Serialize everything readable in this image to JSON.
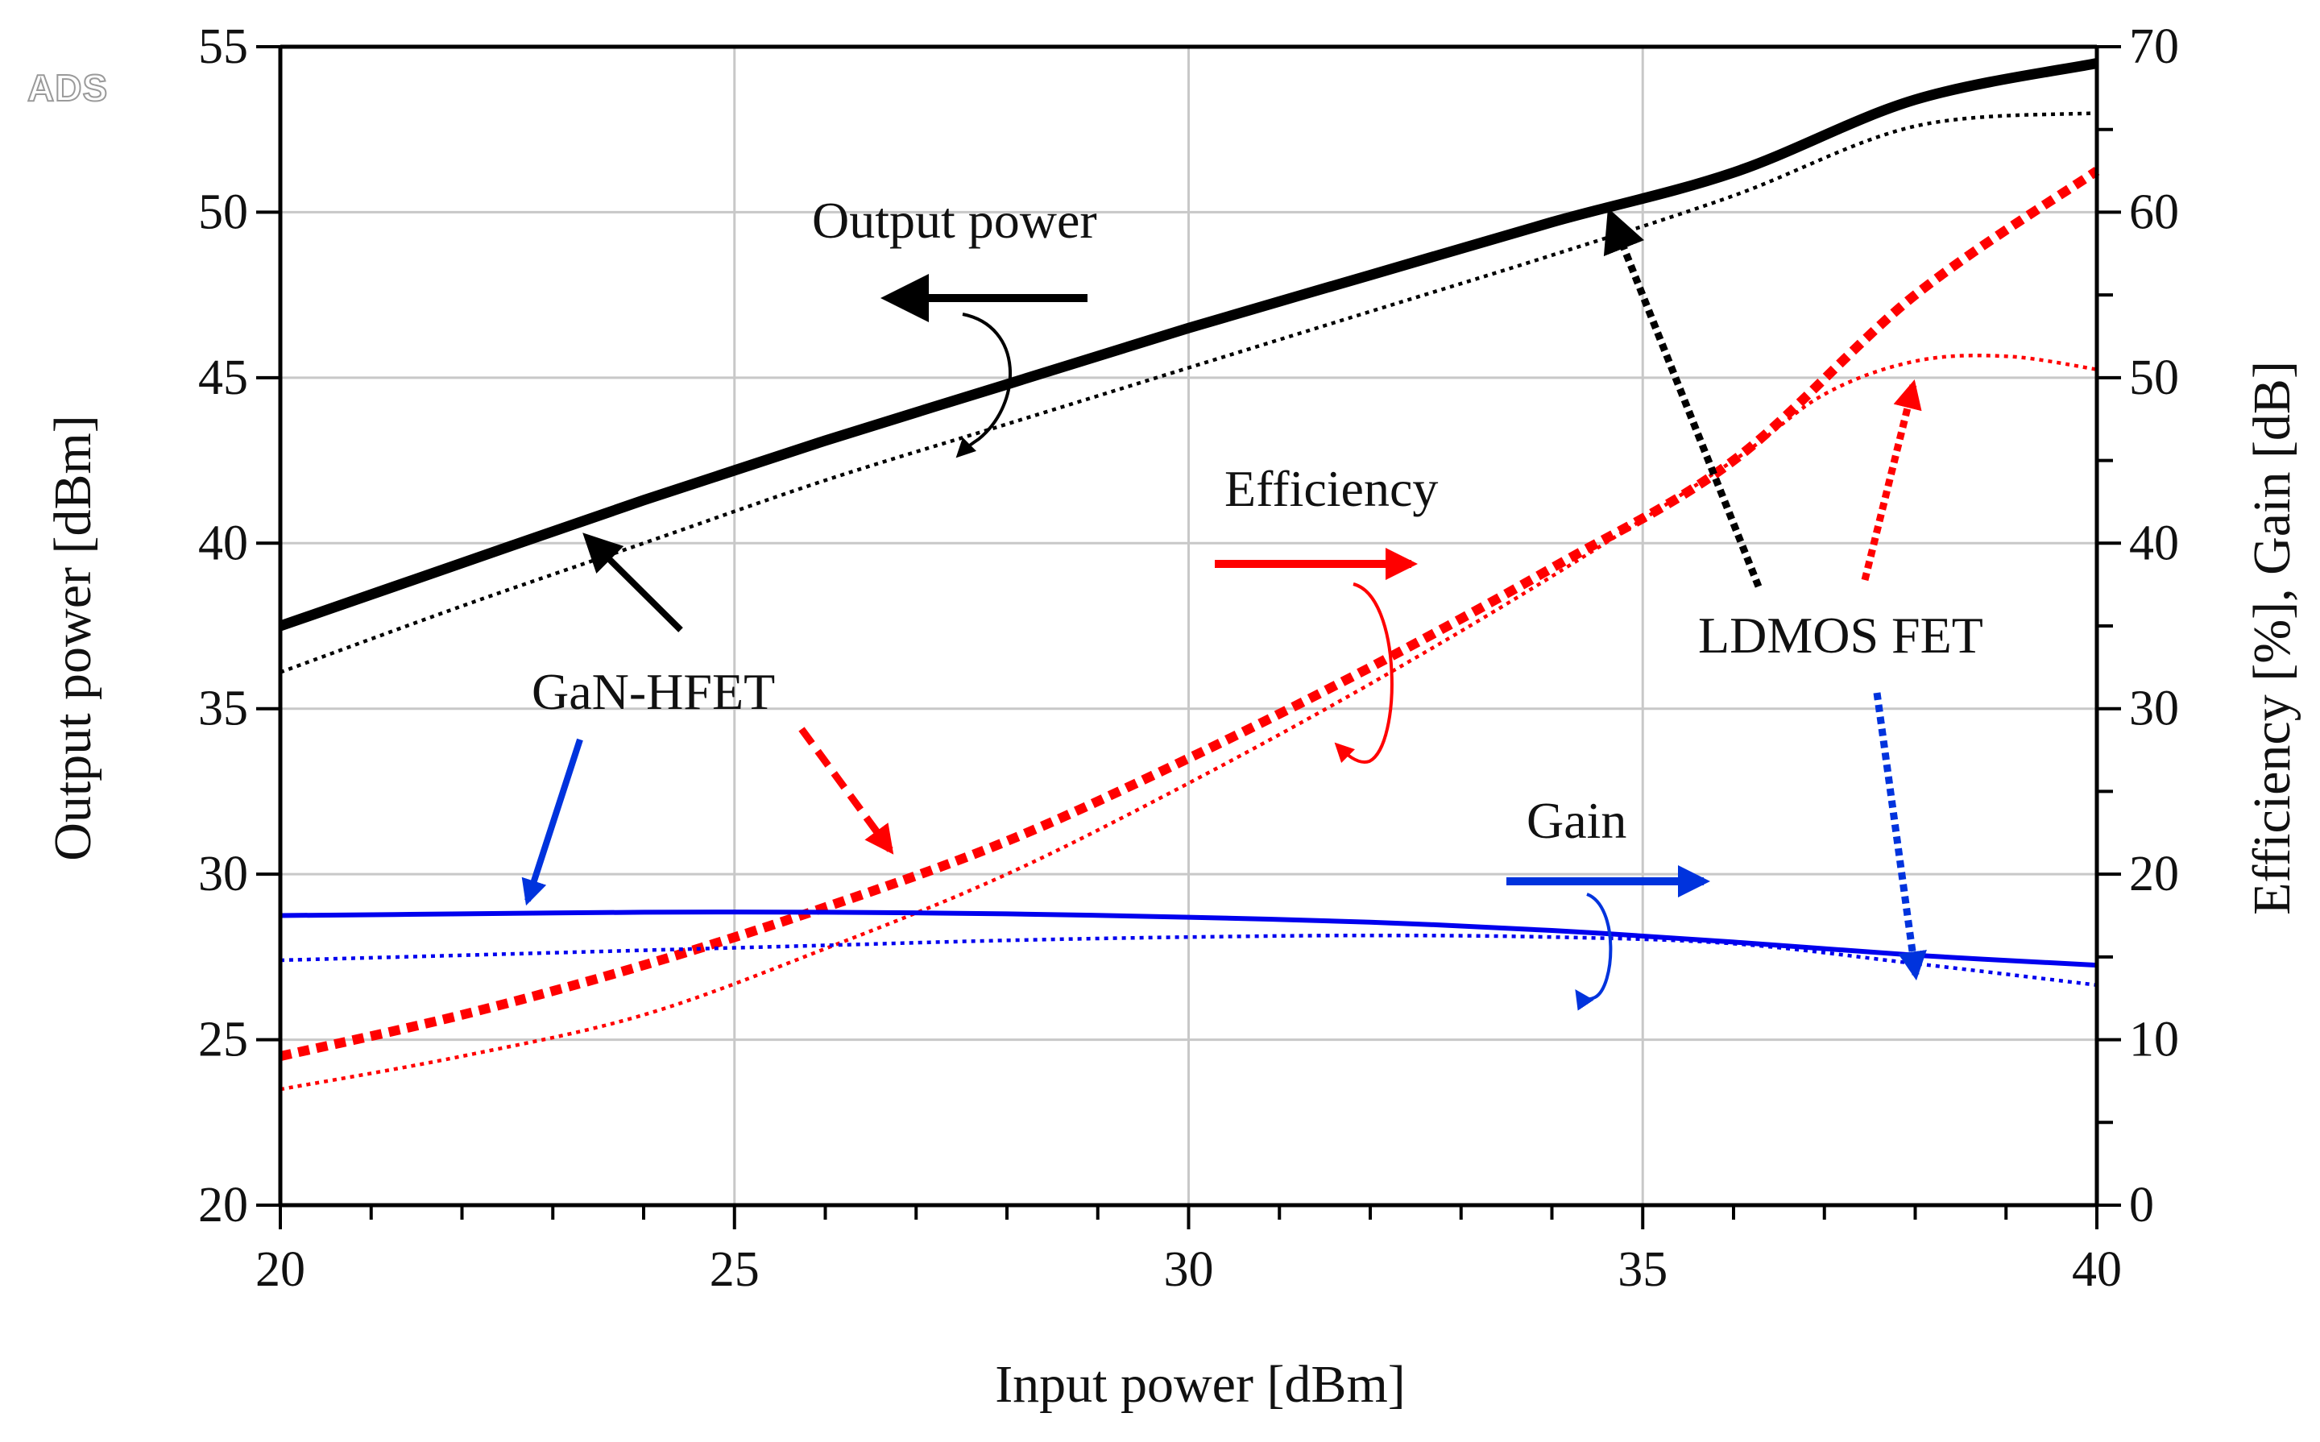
{
  "logo": "ADS",
  "chart_data": {
    "type": "line",
    "title": "",
    "xlabel": "Input power [dBm]",
    "ylabel_left": "Output power [dBm]",
    "ylabel_right": "Efficiency [%], Gain [dB]",
    "xlim": [
      20,
      40
    ],
    "ylim_left": [
      20,
      55
    ],
    "ylim_right": [
      0,
      70
    ],
    "x_ticks": [
      "20",
      "25",
      "30",
      "35",
      "40"
    ],
    "y_left_ticks": [
      "20",
      "25",
      "30",
      "35",
      "40",
      "45",
      "50",
      "55"
    ],
    "y_right_ticks": [
      "0",
      "10",
      "20",
      "30",
      "40",
      "50",
      "60",
      "70"
    ],
    "grid": true,
    "series": [
      {
        "name": "GaN-HFET Output power",
        "axis": "left",
        "device": "GaN-HFET",
        "color": "#000000",
        "style": "solid",
        "x": [
          20,
          22,
          24,
          26,
          28,
          30,
          32,
          34,
          36,
          38,
          40
        ],
        "y": [
          37.5,
          39.4,
          41.3,
          43.1,
          44.8,
          46.5,
          48.1,
          49.7,
          51.2,
          53.4,
          54.5
        ]
      },
      {
        "name": "LDMOS FET Output power",
        "axis": "left",
        "device": "LDMOS FET",
        "color": "#000000",
        "style": "dotted",
        "x": [
          20,
          22,
          24,
          26,
          28,
          30,
          32,
          34,
          36,
          38,
          40
        ],
        "y": [
          36.1,
          38.1,
          40.0,
          41.9,
          43.6,
          45.3,
          47.0,
          48.7,
          50.5,
          52.6,
          53.0
        ]
      },
      {
        "name": "GaN-HFET Efficiency",
        "axis": "right",
        "device": "GaN-HFET",
        "color": "#ff0000",
        "style": "solid",
        "x": [
          20,
          22,
          24,
          26,
          28,
          30,
          32,
          34,
          36,
          38,
          40
        ],
        "y": [
          9.0,
          11.5,
          14.5,
          18.0,
          22.0,
          27.0,
          32.5,
          38.5,
          45.0,
          55.0,
          62.5
        ]
      },
      {
        "name": "LDMOS FET Efficiency",
        "axis": "right",
        "device": "LDMOS FET",
        "color": "#ff0000",
        "style": "dotted",
        "x": [
          20,
          22,
          24,
          26,
          28,
          30,
          32,
          34,
          36,
          37,
          38,
          39,
          40
        ],
        "y": [
          7.0,
          9.0,
          11.5,
          15.5,
          20.0,
          25.5,
          31.5,
          38.0,
          45.0,
          49.0,
          51.0,
          51.3,
          50.5
        ]
      },
      {
        "name": "GaN-HFET Gain",
        "axis": "right",
        "device": "GaN-HFET",
        "color": "#0000ee",
        "style": "solid",
        "x": [
          20,
          22,
          24,
          26,
          28,
          30,
          32,
          34,
          36,
          38,
          40
        ],
        "y": [
          17.5,
          17.6,
          17.7,
          17.7,
          17.6,
          17.4,
          17.1,
          16.6,
          15.9,
          15.1,
          14.5
        ]
      },
      {
        "name": "LDMOS FET Gain",
        "axis": "right",
        "device": "LDMOS FET",
        "color": "#0000ee",
        "style": "dotted",
        "x": [
          20,
          22,
          24,
          26,
          28,
          30,
          32,
          34,
          36,
          38,
          40
        ],
        "y": [
          14.8,
          15.1,
          15.4,
          15.7,
          16.0,
          16.2,
          16.3,
          16.2,
          15.8,
          14.6,
          13.3
        ]
      }
    ],
    "annotations": {
      "output_power": "Output power",
      "efficiency": "Efficiency",
      "gain": "Gain",
      "gan_hfet": "GaN-HFET",
      "ldmos_fet": "LDMOS FET"
    }
  }
}
